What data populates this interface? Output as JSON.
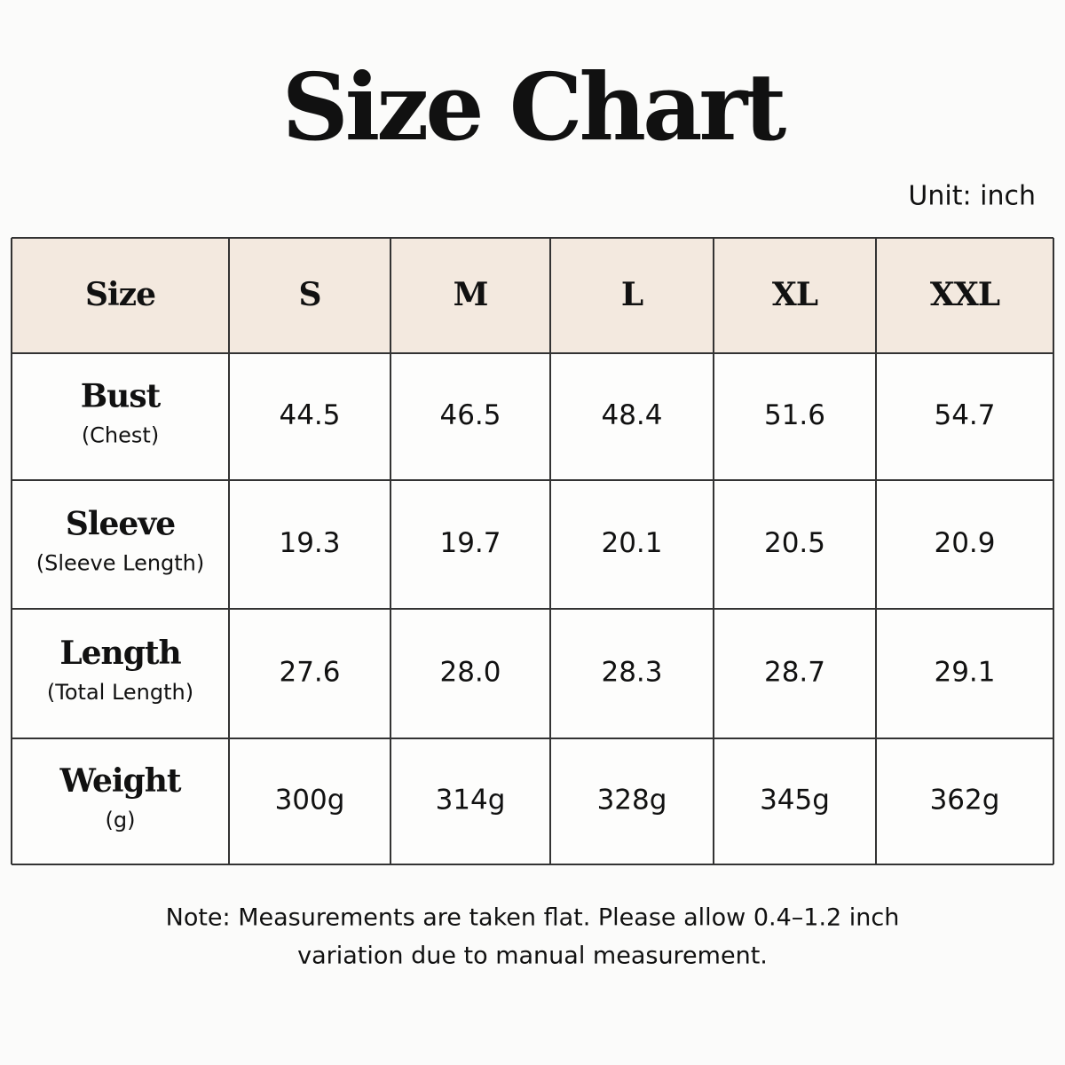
{
  "title": "Size Chart",
  "unit": "Unit: inch",
  "table": {
    "header": [
      "Size",
      "S",
      "M",
      "L",
      "XL",
      "XXL"
    ],
    "rows": [
      {
        "label": "Bust",
        "sublabel": "(Chest)",
        "values": [
          "44.5",
          "46.5",
          "48.4",
          "51.6",
          "54.7"
        ]
      },
      {
        "label": "Sleeve",
        "sublabel": "(Sleeve Length)",
        "values": [
          "19.3",
          "19.7",
          "20.1",
          "20.5",
          "20.9"
        ]
      },
      {
        "label": "Length",
        "sublabel": "(Total Length)",
        "values": [
          "27.6",
          "28.0",
          "28.3",
          "28.7",
          "29.1"
        ]
      },
      {
        "label": "Weight",
        "sublabel": "(g)",
        "values": [
          "300g",
          "314g",
          "328g",
          "345g",
          "362g"
        ]
      }
    ]
  },
  "note": [
    "Note: Measurements are taken flat. Please allow 0.4–1.2 inch",
    "variation due to manual measurement."
  ]
}
